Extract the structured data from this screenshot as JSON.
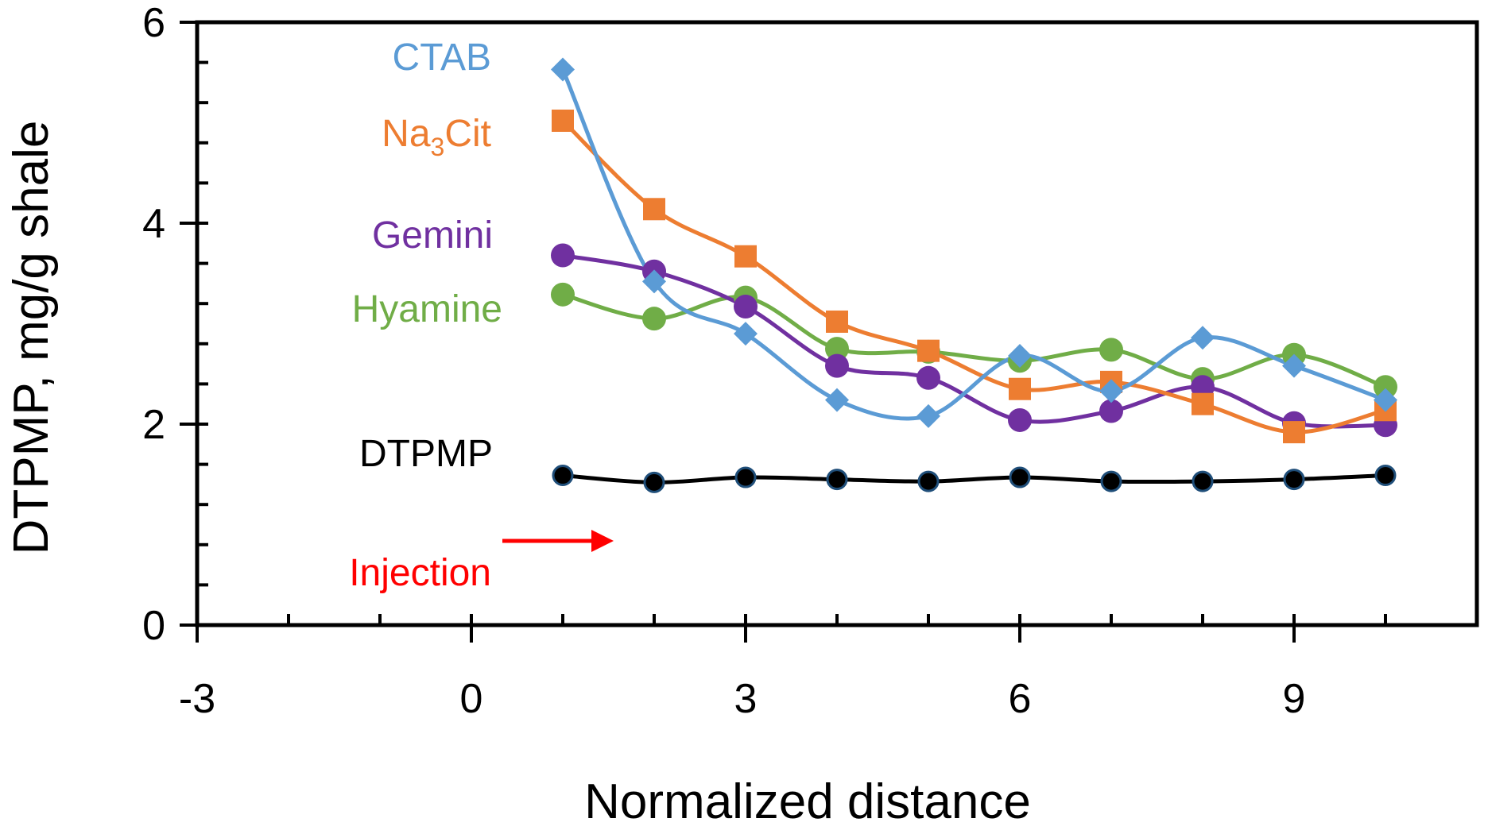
{
  "chart_data": {
    "type": "line",
    "title": "",
    "xlabel": "Normalized distance",
    "ylabel": "DTPMP, mg/g shale",
    "xlim": [
      -3,
      11
    ],
    "ylim": [
      0,
      6
    ],
    "x_ticks": [
      -3,
      0,
      3,
      6,
      9
    ],
    "y_ticks": [
      0,
      2,
      4,
      6
    ],
    "x": [
      1,
      2,
      3,
      4,
      5,
      6,
      7,
      8,
      9,
      10
    ],
    "series": [
      {
        "name": "CTAB",
        "label_main": "CTAB",
        "label_sub": "",
        "label_tail": "",
        "color": "#5b9bd5",
        "marker": "diamond",
        "values": [
          5.53,
          3.42,
          2.9,
          2.24,
          2.08,
          2.68,
          2.33,
          2.86,
          2.58,
          2.24
        ]
      },
      {
        "name": "Na3Cit",
        "label_main": "Na",
        "label_sub": "3",
        "label_tail": "Cit",
        "color": "#ed7d31",
        "marker": "square",
        "values": [
          5.02,
          4.14,
          3.67,
          3.02,
          2.73,
          2.35,
          2.42,
          2.2,
          1.92,
          2.14
        ]
      },
      {
        "name": "Gemini",
        "label_main": "Gemini",
        "label_sub": "",
        "label_tail": "",
        "color": "#7030a0",
        "marker": "circle",
        "values": [
          3.68,
          3.52,
          3.17,
          2.58,
          2.46,
          2.04,
          2.13,
          2.37,
          2.01,
          1.99
        ]
      },
      {
        "name": "Hyamine",
        "label_main": "Hyamine",
        "label_sub": "",
        "label_tail": "",
        "color": "#70ad47",
        "marker": "circle",
        "values": [
          3.29,
          3.05,
          3.26,
          2.75,
          2.72,
          2.63,
          2.74,
          2.45,
          2.69,
          2.37
        ]
      },
      {
        "name": "DTPMP",
        "label_main": "DTPMP",
        "label_sub": "",
        "label_tail": "",
        "color": "#000000",
        "marker": "circle-blue-edge",
        "values": [
          1.49,
          1.42,
          1.47,
          1.45,
          1.43,
          1.47,
          1.43,
          1.43,
          1.45,
          1.49
        ]
      }
    ],
    "annotations": [
      {
        "text": "Injection",
        "color": "#ff0000",
        "arrow": "right"
      }
    ]
  }
}
